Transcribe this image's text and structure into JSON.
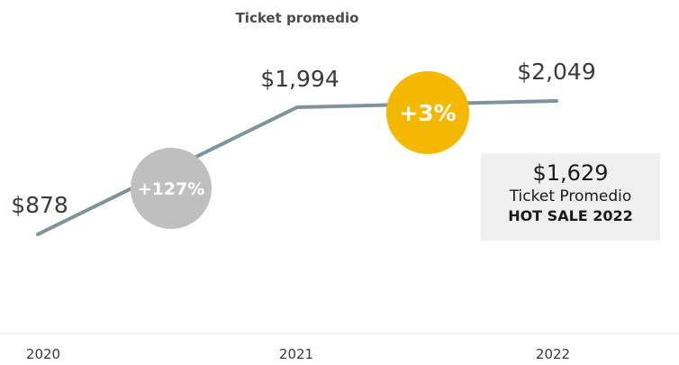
{
  "chart_data": {
    "type": "line",
    "title": "Ticket promedio",
    "categories": [
      "2020",
      "2021",
      "2022"
    ],
    "series": [
      {
        "values": [
          878,
          1994,
          2049
        ],
        "labels": [
          "$878",
          "$1,994",
          "$2,049"
        ],
        "color": "#7f939c"
      }
    ],
    "badges": [
      {
        "text": "+127%",
        "color": "#bfbfbf",
        "between": [
          "2020",
          "2021"
        ]
      },
      {
        "text": "+3%",
        "color": "#f5b800",
        "between": [
          "2021",
          "2022"
        ]
      }
    ],
    "annotation": {
      "value": "$1,629",
      "caption": "Ticket Promedio",
      "event": "HOT SALE 2022",
      "background": "#efefef"
    },
    "ylim": [
      878,
      2049
    ],
    "grid": false,
    "legend": "none"
  }
}
